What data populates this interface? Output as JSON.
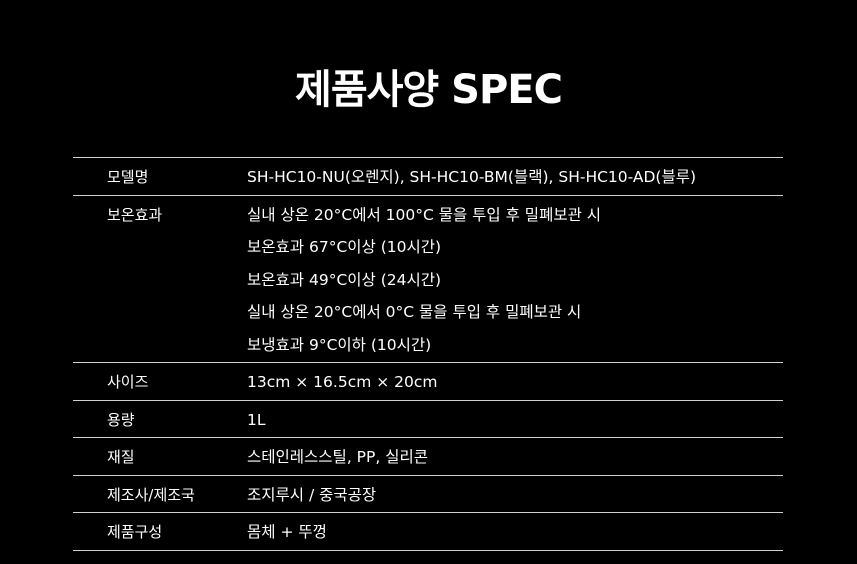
{
  "title": "제품사양 SPEC",
  "rows": [
    {
      "label": "모델명",
      "values": [
        "SH-HC10-NU(오렌지), SH-HC10-BM(블랙), SH-HC10-AD(블루)"
      ]
    },
    {
      "label": "보온효과",
      "values": [
        "실내 상온 20°C에서 100°C 물을 투입 후 밀폐보관 시",
        "보온효과 67°C이상 (10시간)",
        "보온효과 49°C이상 (24시간)",
        "실내 상온 20°C에서 0°C 물을 투입 후 밀폐보관 시",
        "보냉효과 9°C이하 (10시간)"
      ]
    },
    {
      "label": "사이즈",
      "values": [
        "13cm × 16.5cm × 20cm"
      ]
    },
    {
      "label": "용량",
      "values": [
        "1L"
      ]
    },
    {
      "label": "재질",
      "values": [
        "스테인레스스틸, PP, 실리콘"
      ]
    },
    {
      "label": "제조사/제조국",
      "values": [
        "조지루시 / 중국공장"
      ]
    },
    {
      "label": "제품구성",
      "values": [
        "몸체 + 뚜껑"
      ]
    }
  ]
}
